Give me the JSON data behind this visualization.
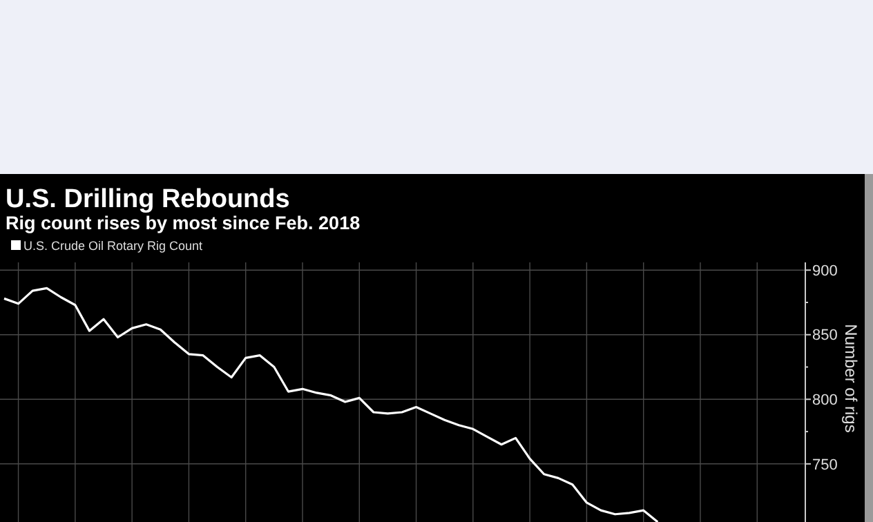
{
  "chart_data": {
    "type": "line",
    "title": "U.S. Drilling Rebounds",
    "subtitle": "Rig count rises by most since Feb. 2018",
    "ylabel": "Number of rigs",
    "categories": [
      null,
      null,
      null,
      null,
      null,
      null,
      null,
      null,
      null,
      null,
      null,
      null,
      null,
      null,
      null,
      null,
      null,
      null,
      null,
      null,
      null,
      null,
      null,
      null,
      null,
      null,
      null,
      null,
      null,
      null,
      null,
      null,
      null,
      null,
      null,
      null,
      null,
      null,
      null,
      null,
      null,
      null,
      null,
      null,
      null,
      null,
      null,
      null,
      null,
      null,
      null,
      null,
      null,
      null,
      null,
      null,
      null
    ],
    "series": [
      {
        "name": "U.S. Crude Oil Rotary Rig Count",
        "color": "#ffffff",
        "values": [
          878,
          874,
          884,
          886,
          879,
          873,
          853,
          862,
          848,
          855,
          858,
          854,
          844,
          835,
          834,
          825,
          817,
          832,
          834,
          825,
          806,
          808,
          805,
          803,
          798,
          801,
          790,
          789,
          790,
          794,
          789,
          784,
          780,
          777,
          771,
          765,
          770,
          754,
          742,
          739,
          734,
          720,
          714,
          711,
          712,
          714,
          705,
          null,
          null,
          null,
          null,
          null,
          null,
          null,
          null,
          null,
          null
        ]
      }
    ],
    "ylim": [
      705,
      906
    ],
    "yticks": [
      750,
      {
        "value": 775,
        "label": null
      },
      800,
      {
        "value": 825,
        "label": null
      },
      850,
      {
        "value": 875,
        "label": null
      },
      900
    ],
    "grid": true,
    "legend": "top left",
    "marker": "none",
    "line_style": "solid"
  }
}
